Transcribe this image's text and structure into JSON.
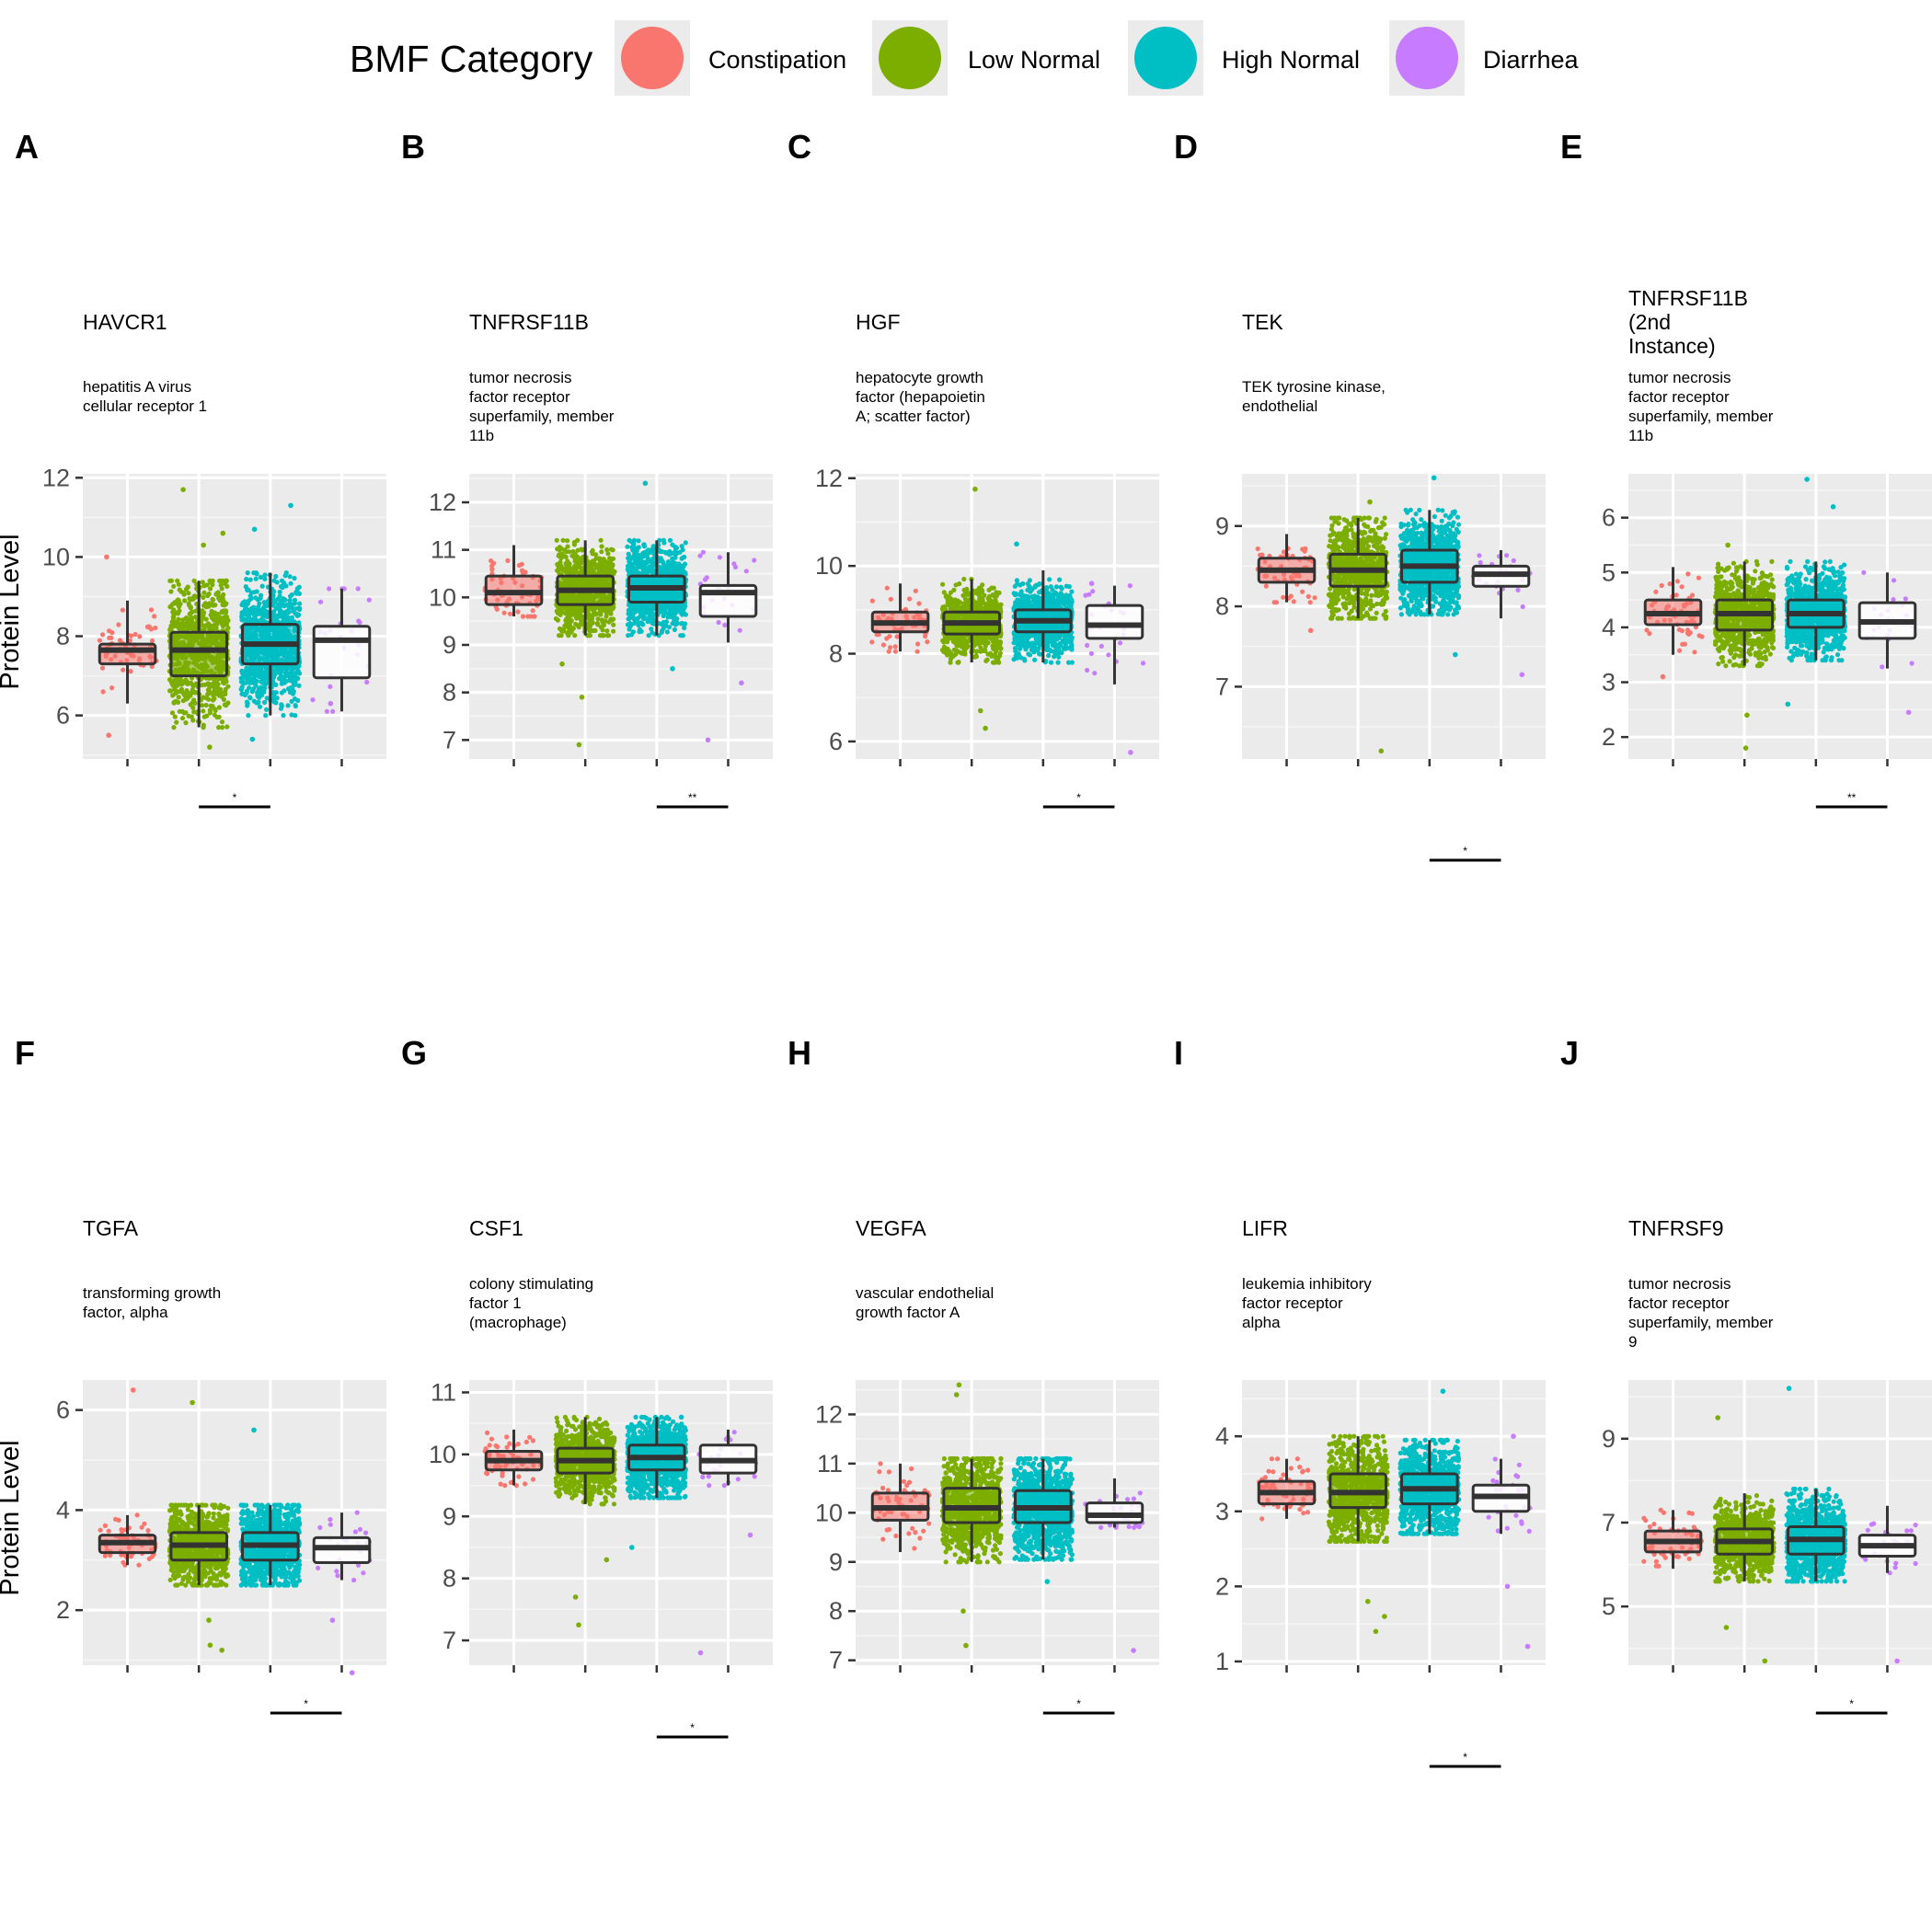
{
  "legend": {
    "title": "BMF Category",
    "items": [
      {
        "label": "Constipation",
        "color": "#F8766D"
      },
      {
        "label": "Low Normal",
        "color": "#7CAE00"
      },
      {
        "label": "High Normal",
        "color": "#00BFC4"
      },
      {
        "label": "Diarrhea",
        "color": "#C77CFF"
      }
    ]
  },
  "y_axis_label": "Protein Level",
  "chart_data": [
    {
      "type": "box",
      "panel": "A",
      "gene": "HAVCR1",
      "desc": [
        "hepatitis A virus",
        "cellular receptor 1"
      ],
      "ylim": [
        4.9,
        12.1
      ],
      "yticks": [
        6,
        8,
        10,
        12
      ],
      "boxes": [
        {
          "q1": 7.3,
          "med": 7.65,
          "q3": 7.8,
          "lo": 6.3,
          "hi": 8.9,
          "n": 60,
          "fill": true
        },
        {
          "q1": 7.0,
          "med": 7.65,
          "q3": 8.1,
          "lo": 5.7,
          "hi": 9.4,
          "n": 800,
          "fill": true
        },
        {
          "q1": 7.3,
          "med": 7.8,
          "q3": 8.3,
          "lo": 6.0,
          "hi": 9.6,
          "n": 1000,
          "fill": true
        },
        {
          "q1": 6.95,
          "med": 7.9,
          "q3": 8.25,
          "lo": 6.1,
          "hi": 9.2,
          "n": 25,
          "fill": false
        }
      ],
      "outliers": [
        [
          0,
          10.0
        ],
        [
          0,
          5.5
        ],
        [
          1,
          11.7
        ],
        [
          1,
          10.6
        ],
        [
          1,
          10.3
        ],
        [
          1,
          5.2
        ],
        [
          2,
          11.3
        ],
        [
          2,
          10.7
        ],
        [
          2,
          5.4
        ],
        [
          3,
          6.3
        ]
      ],
      "sig": {
        "label": "*",
        "from": 1,
        "to": 2
      }
    },
    {
      "type": "box",
      "panel": "B",
      "gene": "TNFRSF11B",
      "desc": [
        "tumor necrosis",
        "factor receptor",
        "superfamily, member",
        "11b"
      ],
      "ylim": [
        6.6,
        12.6
      ],
      "yticks": [
        7,
        8,
        9,
        10,
        11,
        12
      ],
      "boxes": [
        {
          "q1": 9.85,
          "med": 10.1,
          "q3": 10.45,
          "lo": 9.6,
          "hi": 11.1,
          "n": 60,
          "fill": true
        },
        {
          "q1": 9.85,
          "med": 10.15,
          "q3": 10.45,
          "lo": 9.2,
          "hi": 11.2,
          "n": 800,
          "fill": true
        },
        {
          "q1": 9.9,
          "med": 10.2,
          "q3": 10.45,
          "lo": 9.2,
          "hi": 11.2,
          "n": 1000,
          "fill": true
        },
        {
          "q1": 9.6,
          "med": 10.1,
          "q3": 10.25,
          "lo": 9.05,
          "hi": 10.95,
          "n": 25,
          "fill": false
        }
      ],
      "outliers": [
        [
          1,
          8.6
        ],
        [
          1,
          7.9
        ],
        [
          1,
          6.9
        ],
        [
          2,
          12.4
        ],
        [
          2,
          8.5
        ],
        [
          3,
          8.2
        ],
        [
          3,
          7.0
        ]
      ],
      "sig": {
        "label": "**",
        "from": 2,
        "to": 3
      }
    },
    {
      "type": "box",
      "panel": "C",
      "gene": "HGF",
      "desc": [
        "hepatocyte growth",
        "factor (hepapoietin",
        "A; scatter factor)"
      ],
      "ylim": [
        5.6,
        12.1
      ],
      "yticks": [
        6,
        8,
        10,
        12
      ],
      "boxes": [
        {
          "q1": 8.5,
          "med": 8.7,
          "q3": 8.95,
          "lo": 8.05,
          "hi": 9.6,
          "n": 60,
          "fill": true
        },
        {
          "q1": 8.45,
          "med": 8.7,
          "q3": 8.95,
          "lo": 7.8,
          "hi": 9.7,
          "n": 800,
          "fill": true
        },
        {
          "q1": 8.5,
          "med": 8.75,
          "q3": 9.0,
          "lo": 7.8,
          "hi": 9.9,
          "n": 1000,
          "fill": true
        },
        {
          "q1": 8.35,
          "med": 8.65,
          "q3": 9.1,
          "lo": 7.3,
          "hi": 9.55,
          "n": 25,
          "fill": false
        }
      ],
      "outliers": [
        [
          1,
          11.75
        ],
        [
          1,
          6.7
        ],
        [
          1,
          6.3
        ],
        [
          2,
          10.5
        ],
        [
          3,
          9.6
        ],
        [
          3,
          5.75
        ]
      ],
      "sig": {
        "label": "*",
        "from": 2,
        "to": 3
      }
    },
    {
      "type": "box",
      "panel": "D",
      "gene": "TEK",
      "desc": [
        "TEK tyrosine kinase,",
        "endothelial"
      ],
      "ylim": [
        6.1,
        9.65
      ],
      "yticks": [
        7,
        8,
        9
      ],
      "boxes": [
        {
          "q1": 8.3,
          "med": 8.45,
          "q3": 8.6,
          "lo": 8.05,
          "hi": 8.9,
          "n": 60,
          "fill": true
        },
        {
          "q1": 8.25,
          "med": 8.45,
          "q3": 8.65,
          "lo": 7.85,
          "hi": 9.1,
          "n": 800,
          "fill": true
        },
        {
          "q1": 8.3,
          "med": 8.5,
          "q3": 8.7,
          "lo": 7.9,
          "hi": 9.2,
          "n": 1000,
          "fill": true
        },
        {
          "q1": 8.25,
          "med": 8.4,
          "q3": 8.5,
          "lo": 7.85,
          "hi": 8.7,
          "n": 25,
          "fill": false
        }
      ],
      "outliers": [
        [
          0,
          7.7
        ],
        [
          1,
          9.3
        ],
        [
          1,
          6.2
        ],
        [
          2,
          9.6
        ],
        [
          2,
          7.4
        ],
        [
          3,
          7.15
        ]
      ],
      "sig": {
        "label": "*",
        "from": 2,
        "to": 3
      }
    },
    {
      "type": "box",
      "panel": "E",
      "gene": "TNFRSF11B\n(2nd\nInstance)",
      "desc": [
        "tumor necrosis",
        "factor receptor",
        "superfamily, member",
        "11b"
      ],
      "ylim": [
        1.6,
        6.8
      ],
      "yticks": [
        2,
        3,
        4,
        5,
        6
      ],
      "boxes": [
        {
          "q1": 4.05,
          "med": 4.25,
          "q3": 4.5,
          "lo": 3.5,
          "hi": 5.1,
          "n": 60,
          "fill": true
        },
        {
          "q1": 3.95,
          "med": 4.25,
          "q3": 4.5,
          "lo": 3.3,
          "hi": 5.2,
          "n": 800,
          "fill": true
        },
        {
          "q1": 4.0,
          "med": 4.25,
          "q3": 4.5,
          "lo": 3.4,
          "hi": 5.2,
          "n": 1000,
          "fill": true
        },
        {
          "q1": 3.8,
          "med": 4.1,
          "q3": 4.45,
          "lo": 3.25,
          "hi": 5.0,
          "n": 25,
          "fill": false
        }
      ],
      "outliers": [
        [
          0,
          3.1
        ],
        [
          1,
          5.5
        ],
        [
          1,
          2.4
        ],
        [
          1,
          1.8
        ],
        [
          2,
          6.7
        ],
        [
          2,
          6.2
        ],
        [
          2,
          2.6
        ],
        [
          3,
          2.45
        ]
      ],
      "sig": {
        "label": "**",
        "from": 2,
        "to": 3
      }
    },
    {
      "type": "box",
      "panel": "F",
      "gene": "TGFA",
      "desc": [
        "transforming growth",
        "factor, alpha"
      ],
      "ylim": [
        0.9,
        6.6
      ],
      "yticks": [
        2,
        4,
        6
      ],
      "boxes": [
        {
          "q1": 3.15,
          "med": 3.35,
          "q3": 3.5,
          "lo": 2.9,
          "hi": 3.9,
          "n": 60,
          "fill": true
        },
        {
          "q1": 3.0,
          "med": 3.3,
          "q3": 3.55,
          "lo": 2.5,
          "hi": 4.1,
          "n": 800,
          "fill": true
        },
        {
          "q1": 3.0,
          "med": 3.3,
          "q3": 3.55,
          "lo": 2.5,
          "hi": 4.1,
          "n": 1000,
          "fill": true
        },
        {
          "q1": 2.95,
          "med": 3.25,
          "q3": 3.45,
          "lo": 2.6,
          "hi": 3.95,
          "n": 25,
          "fill": false
        }
      ],
      "outliers": [
        [
          0,
          6.4
        ],
        [
          1,
          6.15
        ],
        [
          1,
          1.3
        ],
        [
          1,
          1.2
        ],
        [
          1,
          1.8
        ],
        [
          2,
          5.6
        ],
        [
          3,
          1.8
        ],
        [
          3,
          0.75
        ]
      ],
      "sig": {
        "label": "*",
        "from": 2,
        "to": 3
      }
    },
    {
      "type": "box",
      "panel": "G",
      "gene": "CSF1",
      "desc": [
        "colony stimulating",
        "factor 1",
        "(macrophage)"
      ],
      "ylim": [
        6.6,
        11.2
      ],
      "yticks": [
        7,
        8,
        9,
        10,
        11
      ],
      "boxes": [
        {
          "q1": 9.75,
          "med": 9.9,
          "q3": 10.05,
          "lo": 9.5,
          "hi": 10.4,
          "n": 60,
          "fill": true
        },
        {
          "q1": 9.7,
          "med": 9.9,
          "q3": 10.1,
          "lo": 9.2,
          "hi": 10.6,
          "n": 800,
          "fill": true
        },
        {
          "q1": 9.75,
          "med": 9.95,
          "q3": 10.15,
          "lo": 9.3,
          "hi": 10.6,
          "n": 1000,
          "fill": true
        },
        {
          "q1": 9.7,
          "med": 9.9,
          "q3": 10.15,
          "lo": 9.5,
          "hi": 10.4,
          "n": 25,
          "fill": false
        }
      ],
      "outliers": [
        [
          1,
          8.3
        ],
        [
          1,
          7.7
        ],
        [
          1,
          7.25
        ],
        [
          2,
          8.5
        ],
        [
          3,
          8.7
        ],
        [
          3,
          6.8
        ]
      ],
      "sig": {
        "label": "*",
        "from": 2,
        "to": 3
      }
    },
    {
      "type": "box",
      "panel": "H",
      "gene": "VEGFA",
      "desc": [
        "vascular endothelial",
        "growth factor A"
      ],
      "ylim": [
        6.9,
        12.7
      ],
      "yticks": [
        7,
        8,
        9,
        10,
        11,
        12
      ],
      "boxes": [
        {
          "q1": 9.85,
          "med": 10.1,
          "q3": 10.4,
          "lo": 9.2,
          "hi": 11.0,
          "n": 60,
          "fill": true
        },
        {
          "q1": 9.8,
          "med": 10.1,
          "q3": 10.5,
          "lo": 9.0,
          "hi": 11.1,
          "n": 800,
          "fill": true
        },
        {
          "q1": 9.8,
          "med": 10.1,
          "q3": 10.45,
          "lo": 9.05,
          "hi": 11.1,
          "n": 1000,
          "fill": true
        },
        {
          "q1": 9.8,
          "med": 9.95,
          "q3": 10.2,
          "lo": 9.7,
          "hi": 10.7,
          "n": 25,
          "fill": false
        }
      ],
      "outliers": [
        [
          1,
          12.4
        ],
        [
          1,
          12.6
        ],
        [
          1,
          8.0
        ],
        [
          1,
          7.3
        ],
        [
          2,
          8.6
        ],
        [
          3,
          7.2
        ]
      ],
      "sig": {
        "label": "*",
        "from": 2,
        "to": 3
      }
    },
    {
      "type": "box",
      "panel": "I",
      "gene": "LIFR",
      "desc": [
        "leukemia inhibitory",
        "factor receptor",
        "alpha"
      ],
      "ylim": [
        0.95,
        4.75
      ],
      "yticks": [
        1,
        2,
        3,
        4
      ],
      "boxes": [
        {
          "q1": 3.1,
          "med": 3.25,
          "q3": 3.4,
          "lo": 2.9,
          "hi": 3.7,
          "n": 60,
          "fill": true
        },
        {
          "q1": 3.05,
          "med": 3.25,
          "q3": 3.5,
          "lo": 2.6,
          "hi": 4.0,
          "n": 800,
          "fill": true
        },
        {
          "q1": 3.1,
          "med": 3.3,
          "q3": 3.5,
          "lo": 2.7,
          "hi": 3.95,
          "n": 1000,
          "fill": true
        },
        {
          "q1": 3.0,
          "med": 3.2,
          "q3": 3.35,
          "lo": 2.7,
          "hi": 3.7,
          "n": 25,
          "fill": false
        }
      ],
      "outliers": [
        [
          1,
          1.8
        ],
        [
          1,
          1.4
        ],
        [
          1,
          1.6
        ],
        [
          2,
          4.6
        ],
        [
          3,
          2.0
        ],
        [
          3,
          1.2
        ],
        [
          3,
          4.0
        ]
      ],
      "sig": {
        "label": "*",
        "from": 2,
        "to": 3
      }
    },
    {
      "type": "box",
      "panel": "J",
      "gene": "TNFRSF9",
      "desc": [
        "tumor necrosis",
        "factor receptor",
        "superfamily, member",
        "9"
      ],
      "ylim": [
        3.6,
        10.4
      ],
      "yticks": [
        5,
        7,
        9
      ],
      "boxes": [
        {
          "q1": 6.3,
          "med": 6.55,
          "q3": 6.8,
          "lo": 5.9,
          "hi": 7.3,
          "n": 60,
          "fill": true
        },
        {
          "q1": 6.25,
          "med": 6.55,
          "q3": 6.85,
          "lo": 5.6,
          "hi": 7.7,
          "n": 800,
          "fill": true
        },
        {
          "q1": 6.25,
          "med": 6.6,
          "q3": 6.9,
          "lo": 5.6,
          "hi": 7.8,
          "n": 1000,
          "fill": true
        },
        {
          "q1": 6.2,
          "med": 6.45,
          "q3": 6.7,
          "lo": 5.8,
          "hi": 7.4,
          "n": 25,
          "fill": false
        }
      ],
      "outliers": [
        [
          1,
          9.5
        ],
        [
          1,
          4.5
        ],
        [
          1,
          3.7
        ],
        [
          2,
          10.2
        ],
        [
          3,
          3.7
        ]
      ],
      "sig": {
        "label": "*",
        "from": 2,
        "to": 3
      }
    }
  ]
}
